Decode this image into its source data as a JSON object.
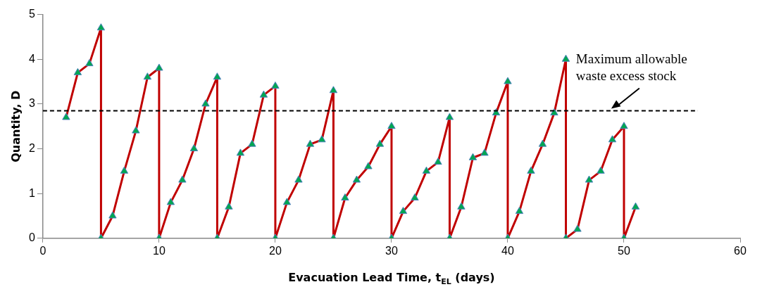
{
  "chart_data": {
    "type": "line",
    "xlabel": "Evacuation Lead Time, t$_{EL}$ (days)",
    "ylabel": "Quantity, D",
    "x": [
      2,
      3,
      4,
      5,
      5,
      6,
      7,
      8,
      9,
      10,
      10,
      11,
      12,
      13,
      14,
      15,
      15,
      16,
      17,
      18,
      19,
      20,
      20,
      21,
      22,
      23,
      24,
      25,
      25,
      26,
      27,
      28,
      29,
      30,
      30,
      31,
      32,
      33,
      34,
      35,
      35,
      36,
      37,
      38,
      39,
      40,
      40,
      41,
      42,
      43,
      44,
      45,
      45,
      46,
      47,
      48,
      49,
      50,
      50,
      51
    ],
    "series": [
      {
        "color": "#c00000",
        "values": [
          2.7,
          3.7,
          3.9,
          4.7,
          0,
          0.5,
          1.5,
          2.4,
          3.6,
          3.8,
          0,
          0.8,
          1.3,
          2.0,
          3.0,
          3.6,
          0,
          0.7,
          1.9,
          2.1,
          3.2,
          3.4,
          0,
          0.8,
          1.3,
          2.1,
          2.2,
          3.3,
          0,
          0.9,
          1.3,
          1.6,
          2.1,
          2.5,
          0,
          0.6,
          0.9,
          1.5,
          1.7,
          2.7,
          0,
          0.7,
          1.8,
          1.9,
          2.8,
          3.5,
          0,
          0.6,
          1.5,
          2.1,
          2.8,
          4.0,
          0,
          0.2,
          1.3,
          1.5,
          2.2,
          2.5,
          0,
          0.7
        ]
      }
    ],
    "xlim": [
      0,
      60
    ],
    "xticks": [
      0,
      10,
      20,
      30,
      40,
      50,
      60
    ],
    "ylim": [
      0,
      5
    ],
    "yticks": [
      0,
      1,
      2,
      3,
      4,
      5
    ],
    "ref_lines": [
      {
        "axis": "y",
        "value": 2.85,
        "color": "#000000",
        "line_style": "dashed"
      }
    ],
    "annotations": [
      {
        "text": "Maximum allowable\nwaste excess stock",
        "x": 48.9,
        "y": 2.85
      }
    ],
    "grid": false,
    "legend": false,
    "marker": "triangle",
    "line_style": "solid"
  }
}
